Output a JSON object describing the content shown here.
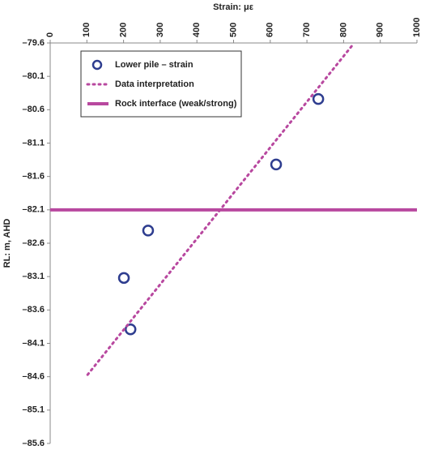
{
  "chart_data": {
    "type": "scatter",
    "x_label": "Strain: με",
    "y_label": "RL: m, AHD",
    "xlim": [
      0,
      1000
    ],
    "xticks": [
      0,
      100,
      200,
      300,
      400,
      500,
      600,
      700,
      800,
      900,
      1000
    ],
    "ylim": [
      -79.6,
      -85.6
    ],
    "yticks": [
      {
        "value": -79.6,
        "label": "–79.6"
      },
      {
        "value": -80.1,
        "label": "–80.1"
      },
      {
        "value": -80.6,
        "label": "–80.6"
      },
      {
        "value": -81.1,
        "label": "–81.1"
      },
      {
        "value": -81.6,
        "label": "–81.6"
      },
      {
        "value": -82.1,
        "label": "–82.1"
      },
      {
        "value": -82.6,
        "label": "–82.6"
      },
      {
        "value": -83.1,
        "label": "–83.1"
      },
      {
        "value": -83.6,
        "label": "–83.6"
      },
      {
        "value": -84.1,
        "label": "–84.1"
      },
      {
        "value": -84.6,
        "label": "–84.6"
      },
      {
        "value": -85.1,
        "label": "–85.1"
      },
      {
        "value": -85.6,
        "label": "–85.6"
      }
    ],
    "legend": "upper left",
    "series": [
      {
        "name": "Lower pile – strain",
        "type": "scatter",
        "color": "#2e3d8f",
        "x": [
          731,
          616,
          267,
          201,
          219
        ],
        "values": [
          -80.44,
          -81.42,
          -82.41,
          -83.12,
          -83.89
        ]
      },
      {
        "name": "Data interpretation",
        "type": "line",
        "dash": "dotted",
        "color": "#b8489f",
        "x": [
          102,
          826
        ],
        "values": [
          -84.57,
          -79.62
        ]
      },
      {
        "name": "Rock interface (weak/strong)",
        "type": "line",
        "dash": "solid",
        "color": "#b8489f",
        "x": [
          0,
          1000
        ],
        "values": [
          -82.1,
          -82.1
        ]
      }
    ]
  }
}
